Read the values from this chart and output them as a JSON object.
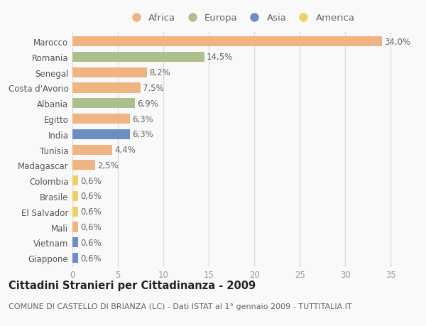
{
  "countries": [
    "Marocco",
    "Romania",
    "Senegal",
    "Costa d'Avorio",
    "Albania",
    "Egitto",
    "India",
    "Tunisia",
    "Madagascar",
    "Colombia",
    "Brasile",
    "El Salvador",
    "Mali",
    "Vietnam",
    "Giappone"
  ],
  "values": [
    34.0,
    14.5,
    8.2,
    7.5,
    6.9,
    6.3,
    6.3,
    4.4,
    2.5,
    0.6,
    0.6,
    0.6,
    0.6,
    0.6,
    0.6
  ],
  "continents": [
    "Africa",
    "Europa",
    "Africa",
    "Africa",
    "Europa",
    "Africa",
    "Asia",
    "Africa",
    "Africa",
    "America",
    "America",
    "America",
    "Africa",
    "Asia",
    "Asia"
  ],
  "continent_colors": {
    "Africa": "#F0B482",
    "Europa": "#ADBF8A",
    "Asia": "#6B8DC4",
    "America": "#F0D060"
  },
  "legend_order": [
    "Africa",
    "Europa",
    "Asia",
    "America"
  ],
  "title": "Cittadini Stranieri per Cittadinanza - 2009",
  "subtitle": "COMUNE DI CASTELLO DI BRIANZA (LC) - Dati ISTAT al 1° gennaio 2009 - TUTTITALIA.IT",
  "xlim": [
    0,
    37
  ],
  "xticks": [
    0,
    5,
    10,
    15,
    20,
    25,
    30,
    35
  ],
  "background_color": "#f9f9f9",
  "grid_color": "#dddddd",
  "bar_height": 0.65,
  "label_fontsize": 8.5,
  "title_fontsize": 10.5,
  "subtitle_fontsize": 8,
  "legend_fontsize": 9.5,
  "tick_fontsize": 8.5,
  "value_color": "#666666",
  "ytick_color": "#555555",
  "xtick_color": "#999999"
}
